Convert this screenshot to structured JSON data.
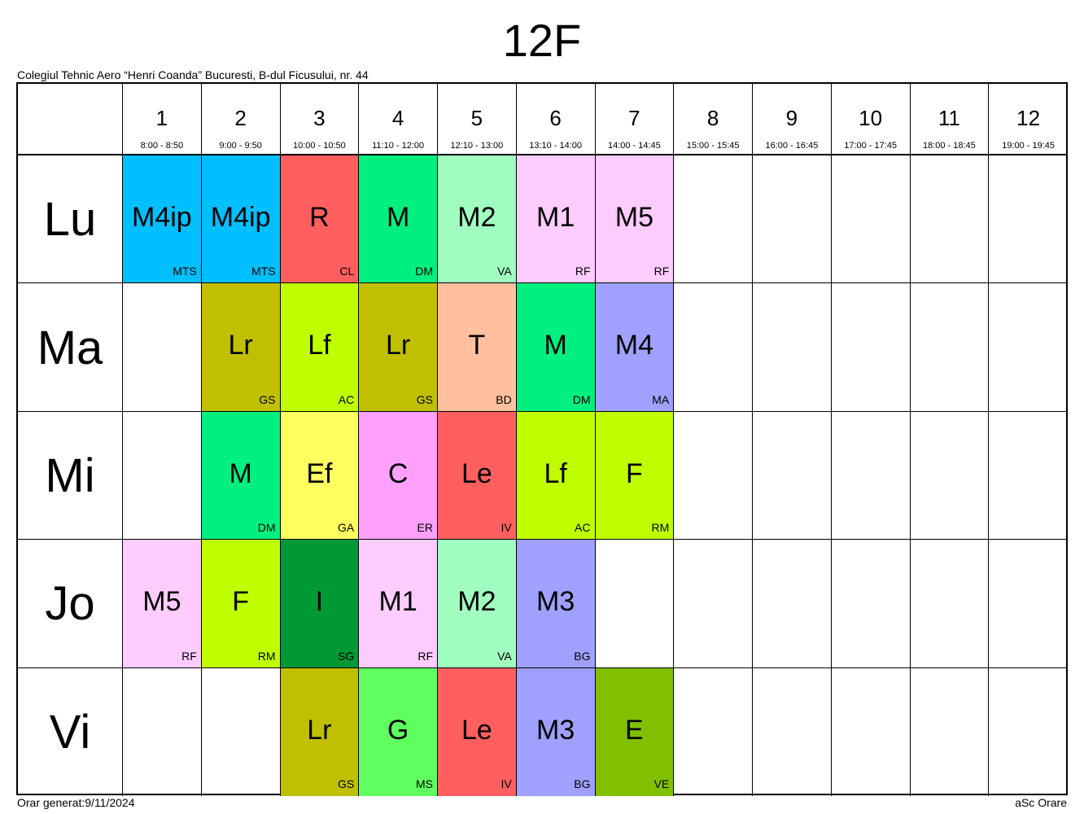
{
  "title": "12F",
  "school": "Colegiul Tehnic Aero “Henri Coanda” Bucuresti, B-dul Ficusului, nr. 44",
  "footer": {
    "generated": "Orar generat:9/11/2024",
    "brand": "aSc Orare"
  },
  "periods": [
    {
      "num": "1",
      "time": "8:00 - 8:50"
    },
    {
      "num": "2",
      "time": "9:00 - 9:50"
    },
    {
      "num": "3",
      "time": "10:00 - 10:50"
    },
    {
      "num": "4",
      "time": "11:10 - 12:00"
    },
    {
      "num": "5",
      "time": "12:10 - 13:00"
    },
    {
      "num": "6",
      "time": "13:10 - 14:00"
    },
    {
      "num": "7",
      "time": "14:00 - 14:45"
    },
    {
      "num": "8",
      "time": "15:00 - 15:45"
    },
    {
      "num": "9",
      "time": "16:00 - 16:45"
    },
    {
      "num": "10",
      "time": "17:00 - 17:45"
    },
    {
      "num": "11",
      "time": "18:00 - 18:45"
    },
    {
      "num": "12",
      "time": "19:00 - 19:45"
    }
  ],
  "days": [
    {
      "name": "Lu",
      "lessons": [
        {
          "subject": "M4ip",
          "teacher": "MTS",
          "color": "#00BFFF"
        },
        {
          "subject": "M4ip",
          "teacher": "MTS",
          "color": "#00BFFF"
        },
        {
          "subject": "R",
          "teacher": "CL",
          "color": "#FF5F5F"
        },
        {
          "subject": "M",
          "teacher": "DM",
          "color": "#00F080"
        },
        {
          "subject": "M2",
          "teacher": "VA",
          "color": "#A0FFC0"
        },
        {
          "subject": "M1",
          "teacher": "RF",
          "color": "#FFCCFF"
        },
        {
          "subject": "M5",
          "teacher": "RF",
          "color": "#FFCCFF"
        },
        null,
        null,
        null,
        null,
        null
      ]
    },
    {
      "name": "Ma",
      "lessons": [
        null,
        {
          "subject": "Lr",
          "teacher": "GS",
          "color": "#C0C000"
        },
        {
          "subject": "Lf",
          "teacher": "AC",
          "color": "#C0FF00"
        },
        {
          "subject": "Lr",
          "teacher": "GS",
          "color": "#C0C000"
        },
        {
          "subject": "T",
          "teacher": "BD",
          "color": "#FFC0A0"
        },
        {
          "subject": "M",
          "teacher": "DM",
          "color": "#00F080"
        },
        {
          "subject": "M4",
          "teacher": "MA",
          "color": "#A0A0FF"
        },
        null,
        null,
        null,
        null,
        null
      ]
    },
    {
      "name": "Mi",
      "lessons": [
        null,
        {
          "subject": "M",
          "teacher": "DM",
          "color": "#00F080"
        },
        {
          "subject": "Ef",
          "teacher": "GA",
          "color": "#FFFF60"
        },
        {
          "subject": "C",
          "teacher": "ER",
          "color": "#FFA0FF"
        },
        {
          "subject": "Le",
          "teacher": "IV",
          "color": "#FF5F5F"
        },
        {
          "subject": "Lf",
          "teacher": "AC",
          "color": "#C0FF00"
        },
        {
          "subject": "F",
          "teacher": "RM",
          "color": "#C0FF00"
        },
        null,
        null,
        null,
        null,
        null
      ]
    },
    {
      "name": "Jo",
      "lessons": [
        {
          "subject": "M5",
          "teacher": "RF",
          "color": "#FFCCFF"
        },
        {
          "subject": "F",
          "teacher": "RM",
          "color": "#C0FF00"
        },
        {
          "subject": "I",
          "teacher": "SG",
          "color": "#009933"
        },
        {
          "subject": "M1",
          "teacher": "RF",
          "color": "#FFCCFF"
        },
        {
          "subject": "M2",
          "teacher": "VA",
          "color": "#A0FFC0"
        },
        {
          "subject": "M3",
          "teacher": "BG",
          "color": "#A0A0FF"
        },
        null,
        null,
        null,
        null,
        null,
        null
      ]
    },
    {
      "name": "Vi",
      "lessons": [
        null,
        null,
        {
          "subject": "Lr",
          "teacher": "GS",
          "color": "#C0C000"
        },
        {
          "subject": "G",
          "teacher": "MS",
          "color": "#60FF60"
        },
        {
          "subject": "Le",
          "teacher": "IV",
          "color": "#FF5F5F"
        },
        {
          "subject": "M3",
          "teacher": "BG",
          "color": "#A0A0FF"
        },
        {
          "subject": "E",
          "teacher": "VE",
          "color": "#80C000"
        },
        null,
        null,
        null,
        null,
        null
      ]
    }
  ]
}
